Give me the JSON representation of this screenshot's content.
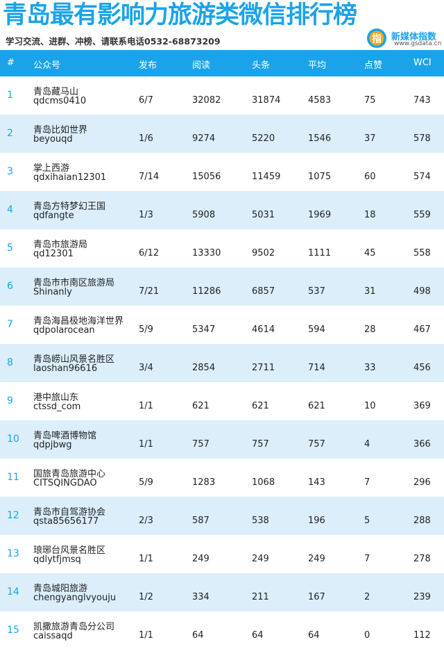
{
  "header": {
    "title": "青岛最有影响力旅游类微信排行榜",
    "subtitle": "学习交流、进群、冲榜、请联系电话0532-68873209",
    "logo": {
      "icon": "gsdata-logo-icon",
      "glyph": "指",
      "name": "新媒体指数",
      "url": "www.gsdata.cn"
    }
  },
  "colors": {
    "accent": "#1aa3e8",
    "row_alt": "#dbeefa",
    "text": "#222222"
  },
  "table": {
    "columns": {
      "rank": "#",
      "account": "公众号",
      "published": "发布",
      "reads": "阅读",
      "headline": "头条",
      "average": "平均",
      "likes": "点赞",
      "wci": "WCI"
    },
    "rows": [
      {
        "rank": "1",
        "name": "青岛藏马山",
        "id": "qdcms0410",
        "published": "6/7",
        "reads": "32082",
        "headline": "31874",
        "average": "4583",
        "likes": "75",
        "wci": "743"
      },
      {
        "rank": "2",
        "name": "青岛比如世界",
        "id": "beyouqd",
        "published": "1/6",
        "reads": "9274",
        "headline": "5220",
        "average": "1546",
        "likes": "37",
        "wci": "578"
      },
      {
        "rank": "3",
        "name": "掌上西游",
        "id": "qdxihaian12301",
        "published": "7/14",
        "reads": "15056",
        "headline": "11459",
        "average": "1075",
        "likes": "60",
        "wci": "574"
      },
      {
        "rank": "4",
        "name": "青岛方特梦幻王国",
        "id": "qdfangte",
        "published": "1/3",
        "reads": "5908",
        "headline": "5031",
        "average": "1969",
        "likes": "18",
        "wci": "559"
      },
      {
        "rank": "5",
        "name": "青岛市旅游局",
        "id": "qd12301",
        "published": "6/12",
        "reads": "13330",
        "headline": "9502",
        "average": "1111",
        "likes": "45",
        "wci": "558"
      },
      {
        "rank": "6",
        "name": "青岛市市南区旅游局",
        "id": "Shinanly",
        "published": "7/21",
        "reads": "11286",
        "headline": "6857",
        "average": "537",
        "likes": "31",
        "wci": "498"
      },
      {
        "rank": "7",
        "name": "青岛海昌极地海洋世界",
        "id": "qdpolarocean",
        "published": "5/9",
        "reads": "5347",
        "headline": "4614",
        "average": "594",
        "likes": "28",
        "wci": "467"
      },
      {
        "rank": "8",
        "name": "青岛崂山风景名胜区",
        "id": "laoshan96616",
        "published": "3/4",
        "reads": "2854",
        "headline": "2711",
        "average": "714",
        "likes": "33",
        "wci": "456"
      },
      {
        "rank": "9",
        "name": "港中旅山东",
        "id": "ctssd_com",
        "published": "1/1",
        "reads": "621",
        "headline": "621",
        "average": "621",
        "likes": "10",
        "wci": "369"
      },
      {
        "rank": "10",
        "name": "青岛啤酒博物馆",
        "id": "qdpjbwg",
        "published": "1/1",
        "reads": "757",
        "headline": "757",
        "average": "757",
        "likes": "4",
        "wci": "366"
      },
      {
        "rank": "11",
        "name": "国旅青岛旅游中心",
        "id": "CITSQINGDAO",
        "published": "5/9",
        "reads": "1283",
        "headline": "1068",
        "average": "143",
        "likes": "7",
        "wci": "296"
      },
      {
        "rank": "12",
        "name": "青岛市自驾游协会",
        "id": "qsta85656177",
        "published": "2/3",
        "reads": "587",
        "headline": "538",
        "average": "196",
        "likes": "5",
        "wci": "288"
      },
      {
        "rank": "13",
        "name": "琅琊台风景名胜区",
        "id": "qdlytfjmsq",
        "published": "1/1",
        "reads": "249",
        "headline": "249",
        "average": "249",
        "likes": "7",
        "wci": "278"
      },
      {
        "rank": "14",
        "name": "青岛城阳旅游",
        "id": "chengyanglvyouju",
        "published": "1/2",
        "reads": "334",
        "headline": "211",
        "average": "167",
        "likes": "2",
        "wci": "239"
      },
      {
        "rank": "15",
        "name": "凯撒旅游青岛分公司",
        "id": "caissaqd",
        "published": "1/1",
        "reads": "64",
        "headline": "64",
        "average": "64",
        "likes": "0",
        "wci": "112"
      }
    ]
  }
}
